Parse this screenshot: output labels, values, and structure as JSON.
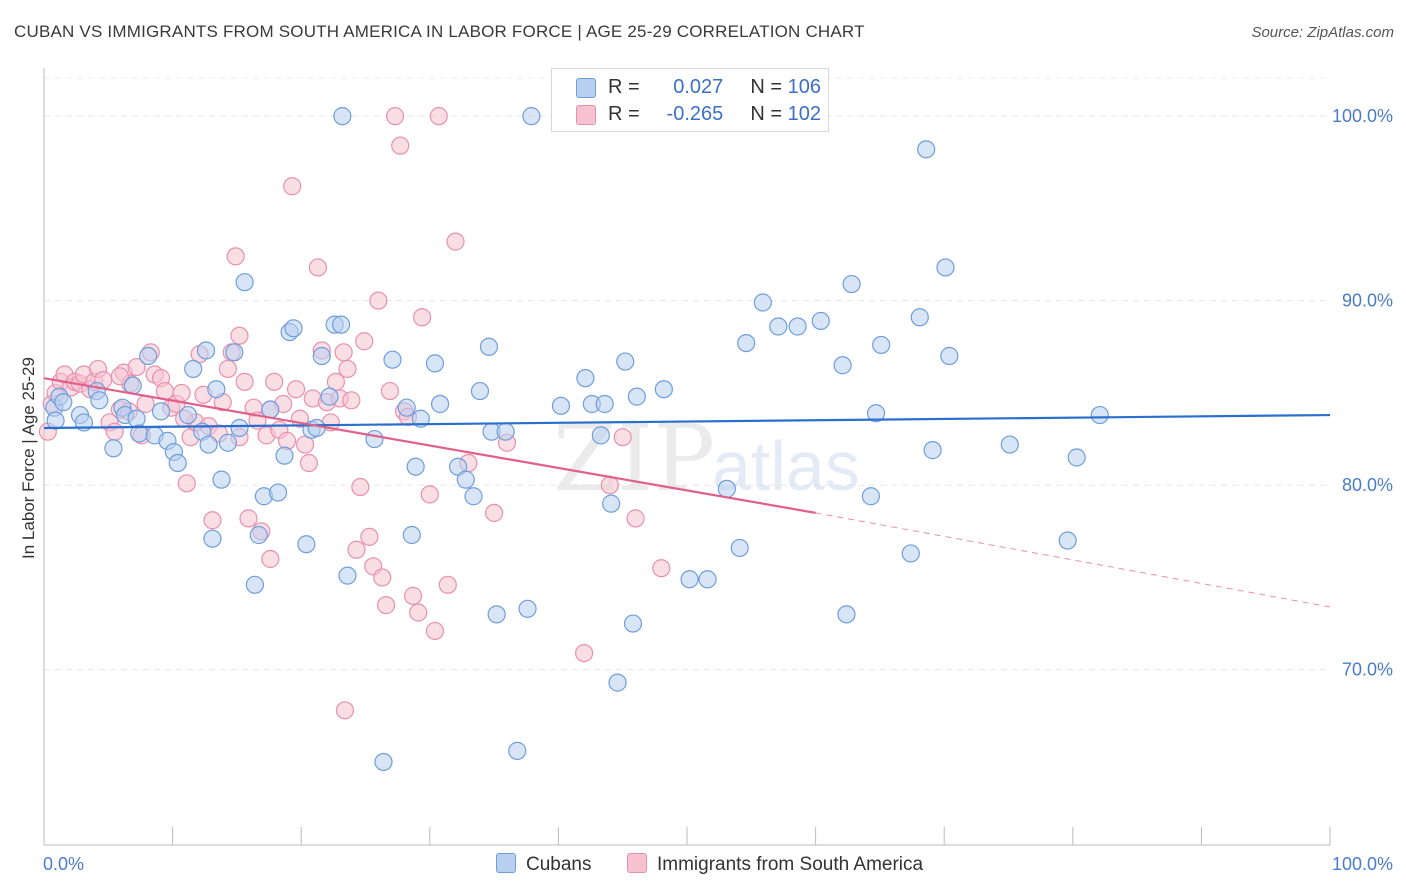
{
  "header": {
    "title": "CUBAN VS IMMIGRANTS FROM SOUTH AMERICA IN LABOR FORCE | AGE 25-29 CORRELATION CHART",
    "source": "Source: ZipAtlas.com"
  },
  "legend": {
    "cubans": {
      "r_label": "R =",
      "r_value": "0.027",
      "n_label": "N =",
      "n_value": "106"
    },
    "immigrants": {
      "r_label": "R =",
      "r_value": "-0.265",
      "n_label": "N =",
      "n_value": "102"
    }
  },
  "watermark": {
    "zip": "ZIP",
    "atlas": "atlas"
  },
  "colors": {
    "cubans_fill": "#b8d0f0",
    "cubans_stroke": "#6f9edb",
    "cubans_line": "#2a6fcf",
    "immigrants_fill": "#f6c2d2",
    "immigrants_stroke": "#e891ad",
    "immigrants_line": "#e0608a",
    "tick_text": "#4a7cc9"
  },
  "chart_data": {
    "type": "scatter",
    "title": "CUBAN VS IMMIGRANTS FROM SOUTH AMERICA IN LABOR FORCE | AGE 25-29 CORRELATION CHART",
    "ylabel": "In Labor Force | Age 25-29",
    "xlabel": "",
    "xlim": [
      0,
      100
    ],
    "ylim": [
      60.5,
      102.5
    ],
    "x_tick_labels": [
      "0.0%",
      "100.0%"
    ],
    "y_ticks": [
      100,
      90,
      80,
      70
    ],
    "y_tick_labels": [
      "100.0%",
      "90.0%",
      "80.0%",
      "70.0%"
    ],
    "grid": true,
    "legend_position": "top-center",
    "bottom_legend": [
      "Cubans",
      "Immigrants from South America"
    ],
    "series": [
      {
        "name": "Cubans",
        "trend": {
          "x": [
            0,
            100
          ],
          "y": [
            83.1,
            83.8
          ]
        },
        "points": [
          [
            0.8,
            84.2
          ],
          [
            0.9,
            83.5
          ],
          [
            1.2,
            84.8
          ],
          [
            1.5,
            84.5
          ],
          [
            2.8,
            83.8
          ],
          [
            3.1,
            83.4
          ],
          [
            4.1,
            85.1
          ],
          [
            4.3,
            84.6
          ],
          [
            5.4,
            82.0
          ],
          [
            6.1,
            84.2
          ],
          [
            6.3,
            83.8
          ],
          [
            6.9,
            85.4
          ],
          [
            7.2,
            83.6
          ],
          [
            7.4,
            82.8
          ],
          [
            8.1,
            87.0
          ],
          [
            8.6,
            82.7
          ],
          [
            9.1,
            84.0
          ],
          [
            9.6,
            82.4
          ],
          [
            10.1,
            81.8
          ],
          [
            10.4,
            81.2
          ],
          [
            11.2,
            83.8
          ],
          [
            11.6,
            86.3
          ],
          [
            12.3,
            82.9
          ],
          [
            12.6,
            87.3
          ],
          [
            12.8,
            82.2
          ],
          [
            13.1,
            77.1
          ],
          [
            13.4,
            85.2
          ],
          [
            13.8,
            80.3
          ],
          [
            14.3,
            82.3
          ],
          [
            14.8,
            87.2
          ],
          [
            15.2,
            83.1
          ],
          [
            15.6,
            91.0
          ],
          [
            16.4,
            74.6
          ],
          [
            16.7,
            77.3
          ],
          [
            17.1,
            79.4
          ],
          [
            17.6,
            84.1
          ],
          [
            18.2,
            79.6
          ],
          [
            18.7,
            81.6
          ],
          [
            19.1,
            88.3
          ],
          [
            19.4,
            88.5
          ],
          [
            20.4,
            76.8
          ],
          [
            20.8,
            83.0
          ],
          [
            21.2,
            83.1
          ],
          [
            21.6,
            87.0
          ],
          [
            22.2,
            84.8
          ],
          [
            22.6,
            88.7
          ],
          [
            23.1,
            88.7
          ],
          [
            23.6,
            75.1
          ],
          [
            23.2,
            100.0
          ],
          [
            25.7,
            82.5
          ],
          [
            26.4,
            65.0
          ],
          [
            27.1,
            86.8
          ],
          [
            28.2,
            84.2
          ],
          [
            28.6,
            77.3
          ],
          [
            28.9,
            81.0
          ],
          [
            29.3,
            83.6
          ],
          [
            30.4,
            86.6
          ],
          [
            30.8,
            84.4
          ],
          [
            32.2,
            81.0
          ],
          [
            32.8,
            80.3
          ],
          [
            33.4,
            79.4
          ],
          [
            33.9,
            85.1
          ],
          [
            34.6,
            87.5
          ],
          [
            34.8,
            82.9
          ],
          [
            35.2,
            73.0
          ],
          [
            35.9,
            82.9
          ],
          [
            36.8,
            65.6
          ],
          [
            37.6,
            73.3
          ],
          [
            37.9,
            100.0
          ],
          [
            40.2,
            84.3
          ],
          [
            42.1,
            85.8
          ],
          [
            42.6,
            84.4
          ],
          [
            43.3,
            82.7
          ],
          [
            43.6,
            84.4
          ],
          [
            44.1,
            79.0
          ],
          [
            44.6,
            69.3
          ],
          [
            45.2,
            86.7
          ],
          [
            45.8,
            72.5
          ],
          [
            46.1,
            84.8
          ],
          [
            48.2,
            85.2
          ],
          [
            50.2,
            74.9
          ],
          [
            51.6,
            74.9
          ],
          [
            53.1,
            79.8
          ],
          [
            54.1,
            76.6
          ],
          [
            54.6,
            87.7
          ],
          [
            55.9,
            89.9
          ],
          [
            57.1,
            88.6
          ],
          [
            57.6,
            100.0
          ],
          [
            58.6,
            88.6
          ],
          [
            60.4,
            88.9
          ],
          [
            62.1,
            86.5
          ],
          [
            62.4,
            73.0
          ],
          [
            62.8,
            90.9
          ],
          [
            64.3,
            79.4
          ],
          [
            64.7,
            83.9
          ],
          [
            65.1,
            87.6
          ],
          [
            67.4,
            76.3
          ],
          [
            68.1,
            89.1
          ],
          [
            68.6,
            98.2
          ],
          [
            69.1,
            81.9
          ],
          [
            70.1,
            91.8
          ],
          [
            70.4,
            87.0
          ],
          [
            75.1,
            82.2
          ],
          [
            79.6,
            77.0
          ],
          [
            80.3,
            81.5
          ],
          [
            82.1,
            83.8
          ]
        ]
      },
      {
        "name": "Immigrants from South America",
        "trend": {
          "x": [
            0,
            60
          ],
          "y": [
            85.8,
            78.5
          ]
        },
        "trend_dashed": {
          "x": [
            60,
            100
          ],
          "y": [
            78.5,
            73.4
          ]
        },
        "points": [
          [
            0.3,
            82.9
          ],
          [
            0.6,
            84.4
          ],
          [
            0.9,
            85.0
          ],
          [
            1.3,
            85.6
          ],
          [
            1.6,
            86.0
          ],
          [
            2.1,
            85.3
          ],
          [
            2.4,
            85.6
          ],
          [
            2.8,
            85.5
          ],
          [
            3.1,
            86.0
          ],
          [
            3.6,
            85.2
          ],
          [
            3.9,
            85.6
          ],
          [
            4.2,
            86.3
          ],
          [
            4.6,
            85.7
          ],
          [
            5.1,
            83.4
          ],
          [
            5.5,
            82.9
          ],
          [
            5.9,
            84.1
          ],
          [
            6.2,
            86.1
          ],
          [
            6.7,
            85.5
          ],
          [
            7.2,
            86.4
          ],
          [
            7.6,
            82.7
          ],
          [
            7.9,
            84.4
          ],
          [
            8.3,
            87.2
          ],
          [
            8.6,
            86.0
          ],
          [
            9.1,
            85.8
          ],
          [
            9.4,
            85.1
          ],
          [
            9.9,
            84.2
          ],
          [
            10.3,
            84.4
          ],
          [
            10.7,
            85.0
          ],
          [
            11.1,
            80.1
          ],
          [
            11.4,
            82.6
          ],
          [
            11.8,
            83.4
          ],
          [
            12.1,
            87.1
          ],
          [
            12.4,
            84.9
          ],
          [
            12.8,
            83.2
          ],
          [
            13.1,
            78.1
          ],
          [
            13.6,
            82.8
          ],
          [
            13.9,
            84.5
          ],
          [
            14.3,
            86.3
          ],
          [
            14.6,
            87.2
          ],
          [
            14.9,
            92.4
          ],
          [
            15.2,
            88.1
          ],
          [
            15.6,
            85.6
          ],
          [
            15.9,
            78.2
          ],
          [
            16.3,
            84.2
          ],
          [
            16.6,
            83.5
          ],
          [
            16.9,
            77.5
          ],
          [
            17.3,
            82.7
          ],
          [
            17.6,
            84.1
          ],
          [
            17.9,
            85.6
          ],
          [
            18.3,
            83.0
          ],
          [
            18.6,
            84.4
          ],
          [
            18.9,
            82.4
          ],
          [
            19.3,
            96.2
          ],
          [
            19.6,
            85.2
          ],
          [
            19.9,
            83.6
          ],
          [
            20.3,
            82.2
          ],
          [
            20.6,
            81.2
          ],
          [
            20.9,
            84.7
          ],
          [
            21.3,
            91.8
          ],
          [
            21.6,
            87.3
          ],
          [
            22.0,
            84.5
          ],
          [
            22.3,
            83.4
          ],
          [
            22.7,
            85.6
          ],
          [
            23.0,
            84.7
          ],
          [
            23.3,
            87.2
          ],
          [
            23.6,
            86.3
          ],
          [
            23.9,
            84.6
          ],
          [
            24.3,
            76.5
          ],
          [
            24.6,
            79.9
          ],
          [
            24.9,
            87.8
          ],
          [
            25.3,
            77.2
          ],
          [
            25.6,
            75.6
          ],
          [
            26.0,
            90.0
          ],
          [
            26.3,
            75.0
          ],
          [
            26.6,
            73.5
          ],
          [
            26.9,
            85.1
          ],
          [
            27.3,
            100.0
          ],
          [
            27.7,
            98.4
          ],
          [
            28.0,
            84.0
          ],
          [
            28.3,
            83.7
          ],
          [
            28.7,
            74.0
          ],
          [
            29.1,
            73.1
          ],
          [
            29.4,
            89.1
          ],
          [
            30.0,
            79.5
          ],
          [
            30.4,
            72.1
          ],
          [
            30.7,
            100.0
          ],
          [
            31.4,
            74.6
          ],
          [
            32.0,
            93.2
          ],
          [
            33.0,
            81.2
          ],
          [
            35.0,
            78.5
          ],
          [
            36.0,
            82.3
          ],
          [
            42.0,
            70.9
          ],
          [
            44.0,
            80.0
          ],
          [
            45.0,
            82.6
          ],
          [
            46.0,
            78.2
          ],
          [
            48.0,
            75.5
          ],
          [
            23.4,
            67.8
          ],
          [
            15.2,
            82.6
          ],
          [
            17.6,
            76.0
          ],
          [
            10.9,
            83.6
          ],
          [
            5.9,
            85.9
          ],
          [
            6.6,
            84.0
          ]
        ]
      }
    ]
  }
}
